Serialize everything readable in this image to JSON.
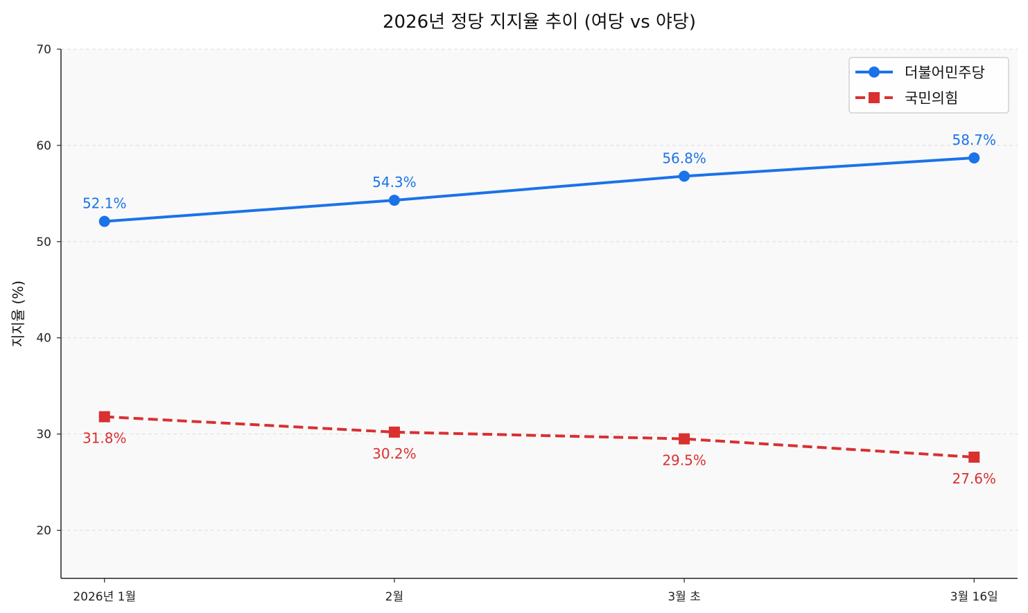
{
  "chart_data": {
    "type": "line",
    "title": "2026년 정당 지지율 추이 (여당 vs 야당)",
    "xlabel": "",
    "ylabel": "지지율 (%)",
    "categories": [
      "2026년 1월",
      "2월",
      "3월 초",
      "3월 16일"
    ],
    "ylim": [
      15,
      70
    ],
    "yticks": [
      20,
      30,
      40,
      50,
      60,
      70
    ],
    "grid": "horizontal dashed",
    "legend_position": "top-right",
    "background": "#f9f9f9",
    "series": [
      {
        "name": "더불어민주당",
        "values": [
          52.1,
          54.3,
          56.8,
          58.7
        ],
        "labels": [
          "52.1%",
          "54.3%",
          "56.8%",
          "58.7%"
        ],
        "color": "#1a73e8",
        "marker": "circle",
        "linestyle": "solid",
        "label_position": "above"
      },
      {
        "name": "국민의힘",
        "values": [
          31.8,
          30.2,
          29.5,
          27.6
        ],
        "labels": [
          "31.8%",
          "30.2%",
          "29.5%",
          "27.6%"
        ],
        "color": "#d93030",
        "marker": "square",
        "linestyle": "dashed",
        "label_position": "below"
      }
    ]
  }
}
